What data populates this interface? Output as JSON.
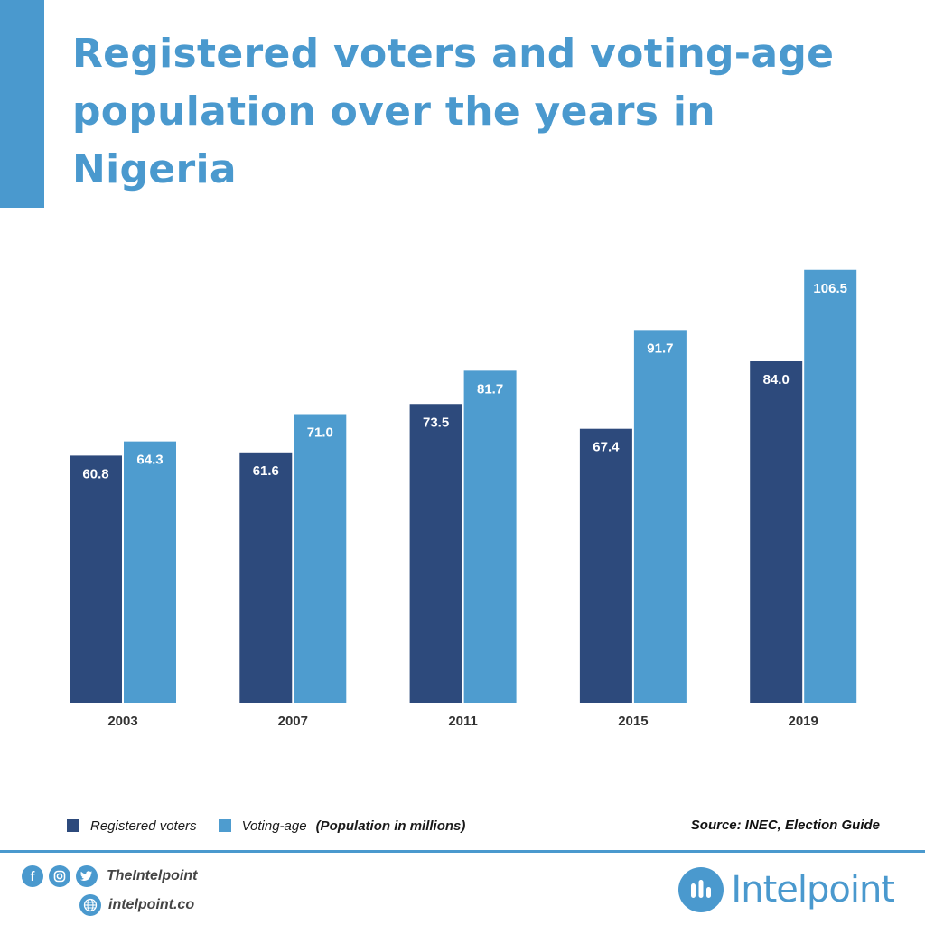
{
  "title": "Registered voters and voting-age population over the years in Nigeria",
  "legend": {
    "registered_label": "Registered voters",
    "voting_age_label": "Voting-age",
    "unit_note": "(Population in millions)"
  },
  "source": "Source: INEC, Election Guide",
  "footer": {
    "social_handle": "TheIntelpoint",
    "website": "intelpoint.co",
    "brand": "Intelpoint",
    "icons": [
      "facebook-icon",
      "instagram-icon",
      "twitter-icon",
      "globe-icon",
      "intelpoint-logo-icon"
    ]
  },
  "colors": {
    "registered": "#2d4a7c",
    "voting_age": "#4e9ccf",
    "accent": "#4a99ce"
  },
  "chart_data": {
    "type": "bar",
    "title": "Registered voters and voting-age population over the years in Nigeria",
    "categories": [
      "2003",
      "2007",
      "2011",
      "2015",
      "2019"
    ],
    "series": [
      {
        "name": "Registered voters",
        "values": [
          60.8,
          61.6,
          73.5,
          67.4,
          84.0
        ],
        "labels": [
          "60.8",
          "61.6",
          "73.5",
          "67.4",
          "84.0"
        ]
      },
      {
        "name": "Voting-age",
        "values": [
          64.3,
          71.0,
          81.7,
          91.7,
          106.5
        ],
        "labels": [
          "64.3",
          "71.0",
          "81.7",
          "91.7",
          "106.5"
        ]
      }
    ],
    "unit": "(Population in millions)",
    "xlabel": "",
    "ylabel": "",
    "grid": false,
    "y_axis_visible": false,
    "data_labels": "inside-top",
    "legend_position": "bottom-left"
  }
}
